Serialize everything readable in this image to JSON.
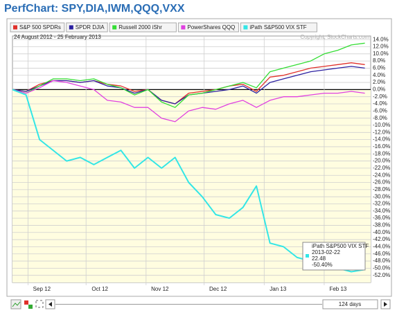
{
  "chart_data": {
    "type": "line",
    "title": "PerfChart: SPY,DIA,IWM,QQQ,VXX",
    "subtitle": "24 August 2012 - 25 February 2013",
    "copyright": "Copyright, StockCharts.com",
    "range_label": "124 days",
    "x": [
      "2012-08-24",
      "2012-08-31",
      "2012-09-07",
      "2012-09-14",
      "2012-09-21",
      "2012-09-28",
      "2012-10-05",
      "2012-10-12",
      "2012-10-19",
      "2012-10-26",
      "2012-11-02",
      "2012-11-09",
      "2012-11-16",
      "2012-11-23",
      "2012-11-30",
      "2012-12-07",
      "2012-12-14",
      "2012-12-21",
      "2012-12-28",
      "2013-01-04",
      "2013-01-11",
      "2013-01-18",
      "2013-01-25",
      "2013-02-01",
      "2013-02-08",
      "2013-02-15",
      "2013-02-22"
    ],
    "xlim": [
      "2012-08-24",
      "2013-02-25"
    ],
    "xticks": [
      {
        "value": "2012-09-01",
        "label": "Sep 12"
      },
      {
        "value": "2012-10-01",
        "label": "Oct 12"
      },
      {
        "value": "2012-11-01",
        "label": "Nov 12"
      },
      {
        "value": "2012-12-01",
        "label": "Dec 12"
      },
      {
        "value": "2013-01-01",
        "label": "Jan 13"
      },
      {
        "value": "2013-02-01",
        "label": "Feb 13"
      }
    ],
    "ylim": [
      -54,
      15
    ],
    "yticks": [
      {
        "value": 14,
        "label": "14.0%"
      },
      {
        "value": 12,
        "label": "12.0%"
      },
      {
        "value": 10,
        "label": "10.0%"
      },
      {
        "value": 8,
        "label": "8.0%"
      },
      {
        "value": 6,
        "label": "6.0%"
      },
      {
        "value": 4,
        "label": "4.0%"
      },
      {
        "value": 2,
        "label": "2.0%"
      },
      {
        "value": 0,
        "label": "0.0%"
      },
      {
        "value": -2,
        "label": "-2.0%"
      },
      {
        "value": -4,
        "label": "-4.0%"
      },
      {
        "value": -6,
        "label": "-6.0%"
      },
      {
        "value": -8,
        "label": "-8.0%"
      },
      {
        "value": -10,
        "label": "-10.0%"
      },
      {
        "value": -12,
        "label": "-12.0%"
      },
      {
        "value": -14,
        "label": "-14.0%"
      },
      {
        "value": -16,
        "label": "-16.0%"
      },
      {
        "value": -18,
        "label": "-18.0%"
      },
      {
        "value": -20,
        "label": "-20.0%"
      },
      {
        "value": -22,
        "label": "-22.0%"
      },
      {
        "value": -24,
        "label": "-24.0%"
      },
      {
        "value": -26,
        "label": "-26.0%"
      },
      {
        "value": -28,
        "label": "-28.0%"
      },
      {
        "value": -30,
        "label": "-30.0%"
      },
      {
        "value": -32,
        "label": "-32.0%"
      },
      {
        "value": -34,
        "label": "-34.0%"
      },
      {
        "value": -36,
        "label": "-36.0%"
      },
      {
        "value": -38,
        "label": "-38.0%"
      },
      {
        "value": -40,
        "label": "-40.0%"
      },
      {
        "value": -42,
        "label": "-42.0%"
      },
      {
        "value": -44,
        "label": "-44.0%"
      },
      {
        "value": -46,
        "label": "-46.0%"
      },
      {
        "value": -48,
        "label": "-48.0%"
      },
      {
        "value": -50,
        "label": "-50.0%"
      },
      {
        "value": -52,
        "label": "-52.0%"
      }
    ],
    "grid": true,
    "series": [
      {
        "name": "S&P 500 SPDRs",
        "color": "#e0302a",
        "values": [
          0,
          -0.5,
          1.5,
          2.5,
          2.5,
          2,
          2.5,
          1.5,
          1,
          -0.5,
          0,
          -3,
          -4,
          -1,
          -0.5,
          0,
          1,
          1.5,
          -0.5,
          3.5,
          4,
          5,
          6,
          6.5,
          7,
          7.5,
          7
        ]
      },
      {
        "name": "SPDR DJIA",
        "color": "#2a1fa0",
        "values": [
          0,
          -0.5,
          1,
          2.5,
          2.5,
          2,
          2.5,
          1,
          0.5,
          -1,
          0,
          -3,
          -4,
          -1.5,
          -1,
          -0.5,
          0,
          1,
          -1,
          2,
          3,
          4,
          5,
          5.5,
          6,
          6.5,
          6
        ]
      },
      {
        "name": "Russell 2000 iShr",
        "color": "#33dd33",
        "values": [
          0,
          -1,
          1,
          3,
          3,
          2.5,
          3,
          1.5,
          0.5,
          -1.5,
          0,
          -3.5,
          -5,
          -1.5,
          -1,
          0,
          1,
          2,
          0.5,
          5,
          6,
          7,
          8,
          10,
          11,
          12.5,
          13
        ]
      },
      {
        "name": "PowerShares QQQ",
        "color": "#e040e0",
        "values": [
          0,
          -1,
          0.5,
          2.5,
          2,
          1,
          0,
          -3,
          -3.5,
          -5,
          -5,
          -8,
          -9,
          -6,
          -5,
          -5.5,
          -4,
          -3,
          -5,
          -3,
          -2,
          -2,
          -1.5,
          -1,
          -1,
          -0.5,
          -1
        ]
      },
      {
        "name": "iPath S&P500 VIX STF",
        "color": "#33e6e6",
        "values": [
          0,
          -1.5,
          -14,
          -17,
          -20,
          -19,
          -21,
          -19,
          -17,
          -22,
          -19,
          -22,
          -19,
          -26,
          -30,
          -35,
          -36,
          -33,
          -27,
          -43,
          -44,
          -47,
          -48,
          -49,
          -50,
          -51,
          -50.4
        ]
      }
    ],
    "tooltip": {
      "name": "iPath S&P500 VIX STF",
      "date": "2013-02-22",
      "price": 22.48,
      "change": "-50.40%"
    }
  }
}
